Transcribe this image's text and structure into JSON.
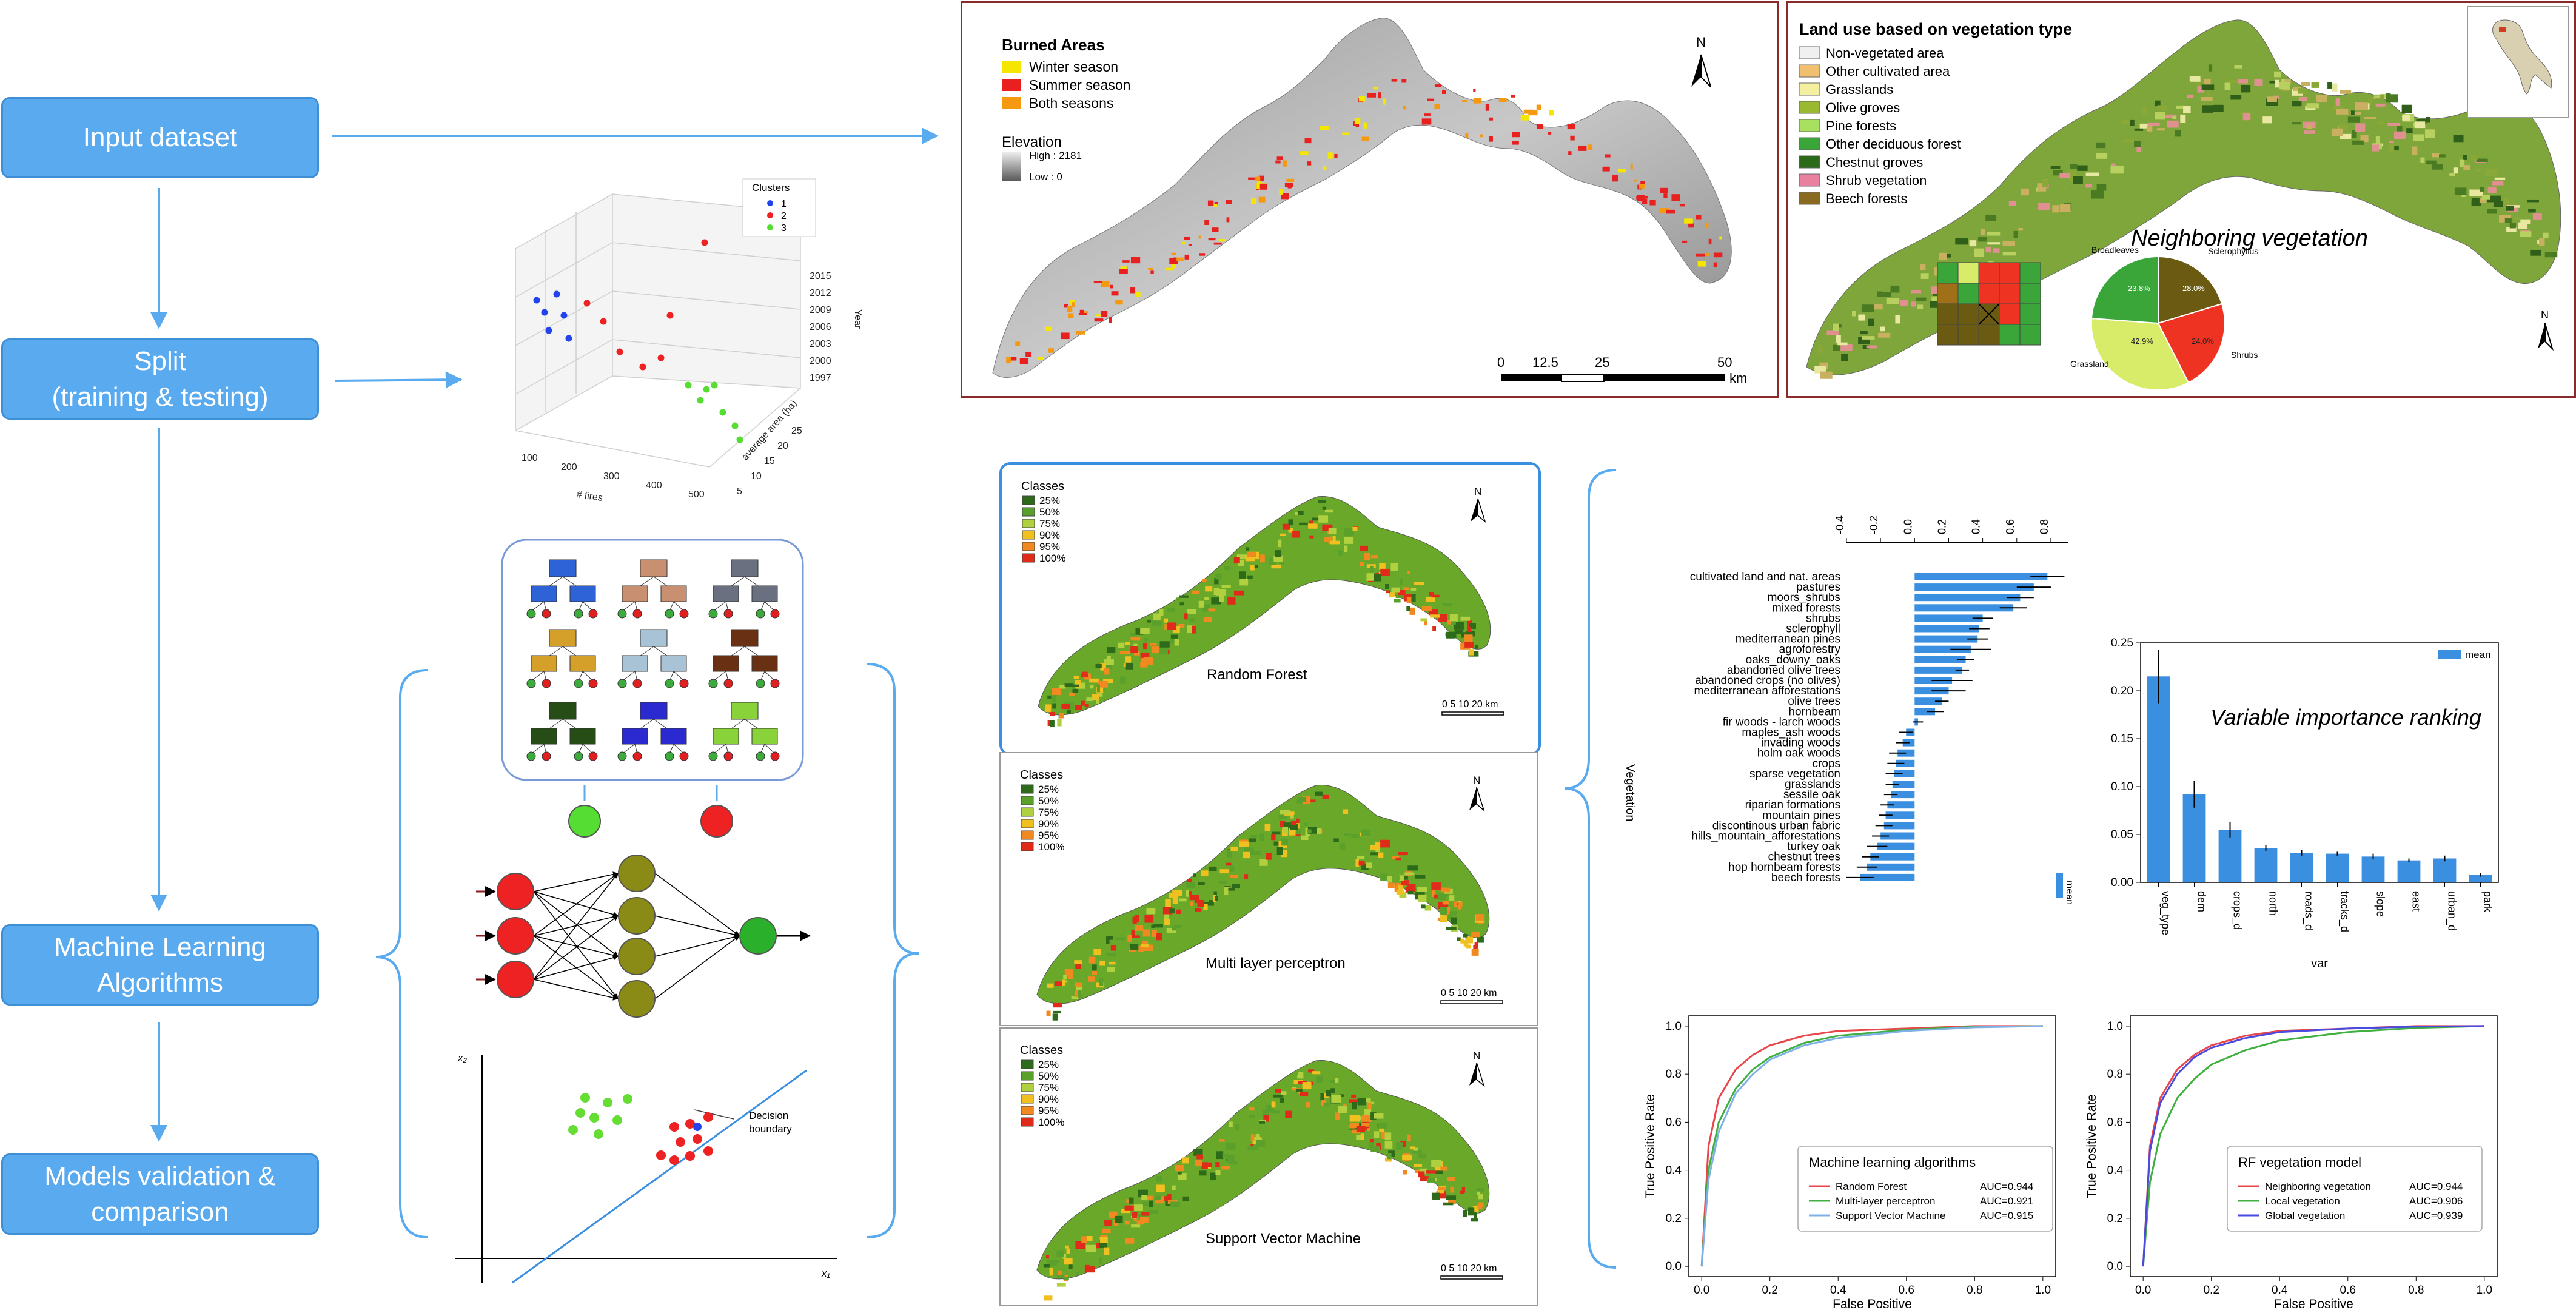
{
  "flow": {
    "input": "Input dataset",
    "split_1": "Split",
    "split_2": "(training & testing)",
    "ml_1": "Machine Learning",
    "ml_2": "Algorithms",
    "val_1": "Models validation &",
    "val_2": "comparison"
  },
  "burned": {
    "title": "Burned Areas",
    "legend": [
      "Winter season",
      "Summer season",
      "Both seasons"
    ],
    "elev_title": "Elevation",
    "elev_high": "High : 2181",
    "elev_low": "Low : 0",
    "scale": [
      "0",
      "12.5",
      "25",
      "50"
    ],
    "scale_unit": "km",
    "north": "N"
  },
  "landuse": {
    "title": "Land use based on vegetation type",
    "legend": [
      "Non-vegetated area",
      "Other cultivated area",
      "Grasslands",
      "Olive groves",
      "Pine forests",
      "Other deciduous forest",
      "Chestnut groves",
      "Shrub vegetation",
      "Beech forests"
    ],
    "neighbor_title": "Neighboring vegetation",
    "pie_labels": [
      "Broadleaves",
      "Sclerophyllus",
      "Shrubs",
      "Grassland"
    ],
    "pie_pcts": [
      "23.8%",
      "28.0%",
      "24.0%",
      "42.9%"
    ],
    "north": "N"
  },
  "scatter3d": {
    "legend_title": "Clusters",
    "legend": [
      "1",
      "2",
      "3"
    ],
    "z_ticks": [
      "2015",
      "2012",
      "2009",
      "2006",
      "2003",
      "2000",
      "1997"
    ],
    "z_label": "Year",
    "x_ticks": [
      "100",
      "200",
      "300",
      "400",
      "500"
    ],
    "x_label": "# fires",
    "y_ticks": [
      "5",
      "10",
      "15",
      "20",
      "25"
    ],
    "y_label": "average area (ha)"
  },
  "svm": {
    "x2": "x₂",
    "x1": "x₁",
    "boundary_1": "Decision",
    "boundary_2": "boundary"
  },
  "maps": {
    "classes_title": "Classes",
    "classes": [
      "25%",
      "50%",
      "75%",
      "90%",
      "95%",
      "100%"
    ],
    "names": [
      "Random Forest",
      "Multi layer perceptron",
      "Support Vector Machine"
    ],
    "scale": "0  5 10    20  km",
    "north": "N"
  },
  "colors": {
    "box": "#5aaaf0",
    "arrow": "#5aaaf0",
    "bar": "#3b8fe0",
    "rf": "#e8464a",
    "mlp": "#40b040",
    "svm": "#7fb0e8",
    "global": "#4a4ae0"
  },
  "chart_data": [
    {
      "type": "bar",
      "orientation": "horizontal",
      "categories": [
        "cultivated land and nat. areas",
        "pastures",
        "moors_shrubs",
        "mixed forests",
        "shrubs",
        "sclerophyll",
        "mediterranean pines",
        "agroforestry",
        "oaks_downy_oaks",
        "abandoned olive trees",
        "abandoned crops (no olives)",
        "mediterranean afforestations",
        "olive trees",
        "hornbeam",
        "fir woods - larch woods",
        "maples_ash woods",
        "invading woods",
        "holm oak woods",
        "crops",
        "sparse vegetation",
        "grasslands",
        "sessile oak",
        "riparian formations",
        "mountain pines",
        "discontinous urban fabric",
        "hills_mountain_afforestations",
        "turkey oak",
        "chestnut trees",
        "hop hornbeam forests",
        "beech forests"
      ],
      "values": [
        0.78,
        0.7,
        0.62,
        0.58,
        0.4,
        0.38,
        0.37,
        0.33,
        0.3,
        0.28,
        0.22,
        0.2,
        0.16,
        0.12,
        0.02,
        -0.05,
        -0.07,
        -0.1,
        -0.11,
        -0.12,
        -0.13,
        -0.14,
        -0.16,
        -0.17,
        -0.18,
        -0.2,
        -0.22,
        -0.26,
        -0.28,
        -0.32
      ],
      "errors": [
        0.1,
        0.1,
        0.08,
        0.08,
        0.06,
        0.06,
        0.06,
        0.12,
        0.05,
        0.04,
        0.12,
        0.1,
        0.04,
        0.05,
        0.03,
        0.04,
        0.04,
        0.05,
        0.05,
        0.05,
        0.04,
        0.04,
        0.04,
        0.04,
        0.05,
        0.05,
        0.06,
        0.05,
        0.06,
        0.08
      ],
      "xlim": [
        -0.4,
        0.9
      ],
      "ticks": [
        "-0.4",
        "-0.2",
        "0.0",
        "0.2",
        "0.4",
        "0.6",
        "0.8"
      ],
      "ylabel": "Vegetation",
      "legend": [
        "mean"
      ]
    },
    {
      "type": "bar",
      "title": "Variable importance ranking",
      "categories": [
        "veg_type",
        "dem",
        "crops_d",
        "north",
        "roads_d",
        "tracks_d",
        "slope",
        "east",
        "urban_d",
        "park"
      ],
      "values": [
        0.215,
        0.092,
        0.055,
        0.036,
        0.031,
        0.03,
        0.027,
        0.023,
        0.025,
        0.008
      ],
      "errors": [
        0.028,
        0.014,
        0.008,
        0.003,
        0.003,
        0.002,
        0.003,
        0.002,
        0.003,
        0.002
      ],
      "ylim": [
        0,
        0.25
      ],
      "y_ticks": [
        "0.00",
        "0.05",
        "0.10",
        "0.15",
        "0.20",
        "0.25"
      ],
      "xlabel": "var",
      "legend": [
        "mean"
      ]
    },
    {
      "type": "line",
      "title": "Machine learning algorithms",
      "xlabel": "False Positive",
      "ylabel": "True Positive Rate",
      "ticks": [
        "0.0",
        "0.2",
        "0.4",
        "0.6",
        "0.8",
        "1.0"
      ],
      "series": [
        {
          "name": "Random Forest",
          "auc": "AUC=0.944",
          "color": "#e8464a",
          "x": [
            0,
            0.02,
            0.05,
            0.1,
            0.15,
            0.2,
            0.3,
            0.4,
            0.6,
            0.8,
            1.0
          ],
          "y": [
            0,
            0.5,
            0.7,
            0.82,
            0.88,
            0.92,
            0.96,
            0.98,
            0.99,
            1.0,
            1.0
          ]
        },
        {
          "name": "Multi-layer perceptron",
          "auc": "AUC=0.921",
          "color": "#40b040",
          "x": [
            0,
            0.02,
            0.05,
            0.1,
            0.15,
            0.2,
            0.3,
            0.4,
            0.6,
            0.8,
            1.0
          ],
          "y": [
            0,
            0.4,
            0.6,
            0.74,
            0.82,
            0.87,
            0.93,
            0.96,
            0.985,
            0.997,
            1.0
          ]
        },
        {
          "name": "Support Vector Machine",
          "auc": "AUC=0.915",
          "color": "#7fb0e8",
          "x": [
            0,
            0.02,
            0.05,
            0.1,
            0.15,
            0.2,
            0.3,
            0.4,
            0.6,
            0.8,
            1.0
          ],
          "y": [
            0,
            0.36,
            0.56,
            0.72,
            0.8,
            0.86,
            0.92,
            0.95,
            0.98,
            0.995,
            1.0
          ]
        }
      ]
    },
    {
      "type": "line",
      "title": "RF vegetation model",
      "xlabel": "False Positive",
      "ylabel": "True Positive Rate",
      "ticks": [
        "0.0",
        "0.2",
        "0.4",
        "0.6",
        "0.8",
        "1.0"
      ],
      "series": [
        {
          "name": "Neighboring vegetation",
          "auc": "AUC=0.944",
          "color": "#e8464a",
          "x": [
            0,
            0.02,
            0.05,
            0.1,
            0.15,
            0.2,
            0.3,
            0.4,
            0.6,
            0.8,
            1.0
          ],
          "y": [
            0,
            0.5,
            0.7,
            0.82,
            0.88,
            0.92,
            0.96,
            0.98,
            0.99,
            1.0,
            1.0
          ]
        },
        {
          "name": "Local vegetation",
          "auc": "AUC=0.906",
          "color": "#40b040",
          "x": [
            0,
            0.02,
            0.05,
            0.1,
            0.15,
            0.2,
            0.3,
            0.4,
            0.6,
            0.8,
            1.0
          ],
          "y": [
            0,
            0.35,
            0.55,
            0.7,
            0.78,
            0.84,
            0.9,
            0.94,
            0.975,
            0.993,
            1.0
          ]
        },
        {
          "name": "Global vegetation",
          "auc": "AUC=0.939",
          "color": "#4a4ae0",
          "x": [
            0,
            0.02,
            0.05,
            0.1,
            0.15,
            0.2,
            0.3,
            0.4,
            0.6,
            0.8,
            1.0
          ],
          "y": [
            0,
            0.48,
            0.68,
            0.8,
            0.87,
            0.91,
            0.95,
            0.975,
            0.99,
            0.998,
            1.0
          ]
        }
      ]
    }
  ]
}
